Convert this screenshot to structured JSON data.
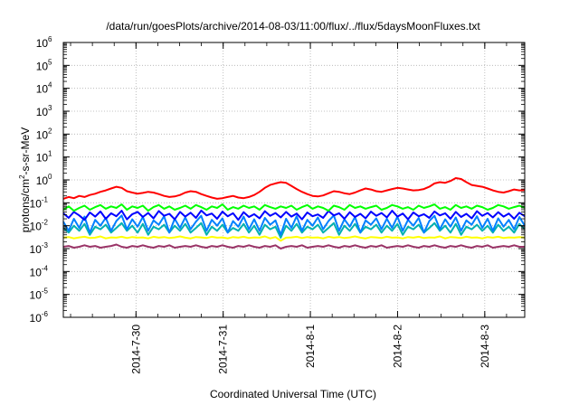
{
  "chart_data": {
    "type": "line",
    "title": "/data/run/goesPlots/archive/2014-08-03/11:00/flux/../flux/5daysMoonFluxes.txt",
    "xlabel": "Coordinated Universal Time (UTC)",
    "ylabel_parts": {
      "pre": "protons/cm",
      "sup": "2",
      "post": "-s-sr-MeV"
    },
    "y_scale": "log",
    "ylim": [
      1e-06,
      1000000.0
    ],
    "y_ticks": [
      {
        "base": "10",
        "exp": "6",
        "value": 1000000.0
      },
      {
        "base": "10",
        "exp": "5",
        "value": 100000.0
      },
      {
        "base": "10",
        "exp": "4",
        "value": 10000.0
      },
      {
        "base": "10",
        "exp": "3",
        "value": 1000.0
      },
      {
        "base": "10",
        "exp": "2",
        "value": 100.0
      },
      {
        "base": "10",
        "exp": "1",
        "value": 10.0
      },
      {
        "base": "10",
        "exp": "0",
        "value": 1.0
      },
      {
        "base": "10",
        "exp": "-1",
        "value": 0.1
      },
      {
        "base": "10",
        "exp": "-2",
        "value": 0.01
      },
      {
        "base": "10",
        "exp": "-3",
        "value": 0.001
      },
      {
        "base": "10",
        "exp": "-4",
        "value": 0.0001
      },
      {
        "base": "10",
        "exp": "-5",
        "value": 1e-05
      },
      {
        "base": "10",
        "exp": "-6",
        "value": 1e-06
      }
    ],
    "xlim": [
      "2014-07-29T04:00",
      "2014-08-03T11:00"
    ],
    "x_ticks": [
      "2014-7-30",
      "2014-7-31",
      "2014-8-1",
      "2014-8-2",
      "2014-8-3"
    ],
    "grid": true,
    "series": [
      {
        "color": "#ff0000",
        "values": [
          0.15,
          0.18,
          0.16,
          0.2,
          0.18,
          0.22,
          0.25,
          0.3,
          0.35,
          0.42,
          0.5,
          0.45,
          0.32,
          0.28,
          0.25,
          0.27,
          0.3,
          0.28,
          0.24,
          0.2,
          0.18,
          0.19,
          0.22,
          0.28,
          0.32,
          0.3,
          0.24,
          0.2,
          0.17,
          0.15,
          0.16,
          0.18,
          0.2,
          0.17,
          0.16,
          0.18,
          0.22,
          0.3,
          0.45,
          0.6,
          0.7,
          0.8,
          0.75,
          0.55,
          0.4,
          0.3,
          0.24,
          0.2,
          0.19,
          0.21,
          0.26,
          0.32,
          0.3,
          0.26,
          0.24,
          0.28,
          0.35,
          0.42,
          0.38,
          0.32,
          0.3,
          0.35,
          0.4,
          0.45,
          0.42,
          0.38,
          0.35,
          0.36,
          0.4,
          0.5,
          0.7,
          0.8,
          0.75,
          0.9,
          1.2,
          1.1,
          0.8,
          0.6,
          0.55,
          0.5,
          0.42,
          0.35,
          0.3,
          0.28,
          0.32,
          0.38,
          0.35,
          0.36
        ]
      },
      {
        "color": "#00ff00",
        "values": [
          0.05,
          0.07,
          0.045,
          0.06,
          0.075,
          0.05,
          0.065,
          0.08,
          0.055,
          0.07,
          0.06,
          0.085,
          0.05,
          0.07,
          0.06,
          0.075,
          0.045,
          0.065,
          0.08,
          0.055,
          0.07,
          0.05,
          0.06,
          0.075,
          0.055,
          0.08,
          0.065,
          0.05,
          0.07,
          0.06,
          0.085,
          0.05,
          0.065,
          0.055,
          0.075,
          0.06,
          0.07,
          0.05,
          0.08,
          0.065,
          0.055,
          0.07,
          0.06,
          0.075,
          0.05,
          0.065,
          0.08,
          0.055,
          0.07,
          0.06,
          0.045,
          0.075,
          0.065,
          0.05,
          0.08,
          0.06,
          0.07,
          0.055,
          0.065,
          0.075,
          0.05,
          0.06,
          0.08,
          0.07,
          0.055,
          0.065,
          0.05,
          0.075,
          0.06,
          0.07,
          0.085,
          0.055,
          0.065,
          0.05,
          0.08,
          0.06,
          0.07,
          0.055,
          0.075,
          0.065,
          0.05,
          0.06,
          0.08,
          0.07,
          0.055,
          0.065,
          0.075,
          0.06
        ]
      },
      {
        "color": "#0000ff",
        "values": [
          0.035,
          0.022,
          0.04,
          0.028,
          0.018,
          0.038,
          0.025,
          0.042,
          0.02,
          0.035,
          0.026,
          0.045,
          0.019,
          0.032,
          0.04,
          0.024,
          0.036,
          0.021,
          0.044,
          0.027,
          0.033,
          0.019,
          0.04,
          0.025,
          0.037,
          0.022,
          0.046,
          0.028,
          0.034,
          0.02,
          0.041,
          0.026,
          0.035,
          0.018,
          0.039,
          0.024,
          0.032,
          0.021,
          0.043,
          0.027,
          0.036,
          0.023,
          0.04,
          0.025,
          0.034,
          0.019,
          0.038,
          0.026,
          0.031,
          0.022,
          0.044,
          0.028,
          0.035,
          0.02,
          0.039,
          0.024,
          0.033,
          0.021,
          0.041,
          0.027,
          0.036,
          0.023,
          0.045,
          0.025,
          0.034,
          0.019,
          0.038,
          0.026,
          0.032,
          0.022,
          0.042,
          0.028,
          0.035,
          0.02,
          0.04,
          0.024,
          0.033,
          0.021,
          0.043,
          0.027,
          0.036,
          0.023,
          0.039,
          0.025,
          0.034,
          0.02,
          0.037,
          0.026
        ]
      },
      {
        "color": "#0080ff",
        "values": [
          0.015,
          0.006,
          0.02,
          0.008,
          0.025,
          0.005,
          0.018,
          0.01,
          0.022,
          0.006,
          0.016,
          0.028,
          0.007,
          0.019,
          0.009,
          0.024,
          0.006,
          0.017,
          0.011,
          0.026,
          0.005,
          0.02,
          0.008,
          0.023,
          0.007,
          0.015,
          0.027,
          0.006,
          0.018,
          0.01,
          0.021,
          0.005,
          0.016,
          0.009,
          0.025,
          0.007,
          0.019,
          0.006,
          0.022,
          0.011,
          0.017,
          0.004,
          0.02,
          0.008,
          0.026,
          0.006,
          0.018,
          0.01,
          0.023,
          0.007,
          0.016,
          0.028,
          0.006,
          0.019,
          0.009,
          0.024,
          0.005,
          0.017,
          0.011,
          0.021,
          0.007,
          0.02,
          0.008,
          0.025,
          0.006,
          0.018,
          0.01,
          0.022,
          0.005,
          0.016,
          0.027,
          0.007,
          0.019,
          0.009,
          0.023,
          0.006,
          0.017,
          0.011,
          0.026,
          0.008,
          0.02,
          0.006,
          0.021,
          0.009,
          0.018,
          0.007,
          0.024,
          0.01
        ]
      },
      {
        "color": "#00b0b0",
        "values": [
          0.008,
          0.005,
          0.01,
          0.006,
          0.012,
          0.004,
          0.009,
          0.007,
          0.011,
          0.005,
          0.008,
          0.013,
          0.006,
          0.01,
          0.005,
          0.012,
          0.004,
          0.009,
          0.007,
          0.011,
          0.005,
          0.01,
          0.006,
          0.012,
          0.005,
          0.008,
          0.013,
          0.004,
          0.009,
          0.006,
          0.011,
          0.005,
          0.008,
          0.006,
          0.012,
          0.005,
          0.01,
          0.004,
          0.011,
          0.007,
          0.009,
          0.003,
          0.01,
          0.006,
          0.012,
          0.005,
          0.009,
          0.007,
          0.011,
          0.005,
          0.008,
          0.013,
          0.004,
          0.01,
          0.006,
          0.012,
          0.005,
          0.009,
          0.007,
          0.011,
          0.005,
          0.01,
          0.006,
          0.012,
          0.004,
          0.009,
          0.007,
          0.011,
          0.005,
          0.008,
          0.013,
          0.006,
          0.01,
          0.005,
          0.012,
          0.004,
          0.009,
          0.007,
          0.011,
          0.006,
          0.01,
          0.005,
          0.011,
          0.006,
          0.009,
          0.005,
          0.012,
          0.007
        ]
      },
      {
        "color": "#ffff00",
        "values": [
          0.003,
          0.0032,
          0.0028,
          0.0031,
          0.0033,
          0.0029,
          0.003,
          0.0034,
          0.0028,
          0.0031,
          0.003,
          0.0033,
          0.0029,
          0.0032,
          0.003,
          0.0031,
          0.0028,
          0.0033,
          0.003,
          0.0032,
          0.0029,
          0.0031,
          0.0034,
          0.003,
          0.0028,
          0.0032,
          0.0031,
          0.0029,
          0.0033,
          0.003,
          0.0031,
          0.0028,
          0.0032,
          0.003,
          0.0033,
          0.0029,
          0.0031,
          0.003,
          0.0034,
          0.0028,
          0.0032,
          0.0022,
          0.003,
          0.0031,
          0.0033,
          0.0029,
          0.0032,
          0.003,
          0.0031,
          0.0028,
          0.0033,
          0.003,
          0.0032,
          0.0029,
          0.0031,
          0.0034,
          0.003,
          0.0028,
          0.0032,
          0.0031,
          0.0029,
          0.0033,
          0.003,
          0.0031,
          0.0028,
          0.0032,
          0.003,
          0.0033,
          0.0029,
          0.0031,
          0.003,
          0.0034,
          0.0028,
          0.0032,
          0.0031,
          0.0029,
          0.0033,
          0.003,
          0.0031,
          0.0028,
          0.0032,
          0.003,
          0.0033,
          0.0029,
          0.0031,
          0.003,
          0.0032,
          0.003
        ]
      },
      {
        "color": "#993366",
        "values": [
          0.0012,
          0.0013,
          0.0011,
          0.0012,
          0.0014,
          0.0012,
          0.0013,
          0.0011,
          0.0012,
          0.0013,
          0.0015,
          0.0012,
          0.0011,
          0.0013,
          0.0012,
          0.0014,
          0.0012,
          0.0011,
          0.0013,
          0.0012,
          0.0014,
          0.0011,
          0.0012,
          0.0013,
          0.0012,
          0.0014,
          0.0012,
          0.0011,
          0.0013,
          0.0012,
          0.0014,
          0.0012,
          0.0011,
          0.0013,
          0.0012,
          0.0014,
          0.0012,
          0.0011,
          0.0013,
          0.0012,
          0.0014,
          0.001,
          0.0012,
          0.0013,
          0.0012,
          0.0014,
          0.0011,
          0.0012,
          0.0013,
          0.0012,
          0.0014,
          0.0012,
          0.0011,
          0.0013,
          0.0012,
          0.0014,
          0.0012,
          0.0011,
          0.0013,
          0.0012,
          0.0014,
          0.0011,
          0.0012,
          0.0013,
          0.0012,
          0.0014,
          0.0012,
          0.0011,
          0.0013,
          0.0012,
          0.0014,
          0.0012,
          0.0011,
          0.0013,
          0.0012,
          0.0014,
          0.0012,
          0.0011,
          0.0013,
          0.0012,
          0.0014,
          0.0011,
          0.0012,
          0.0013,
          0.0012,
          0.0014,
          0.0012,
          0.0012
        ]
      }
    ]
  }
}
